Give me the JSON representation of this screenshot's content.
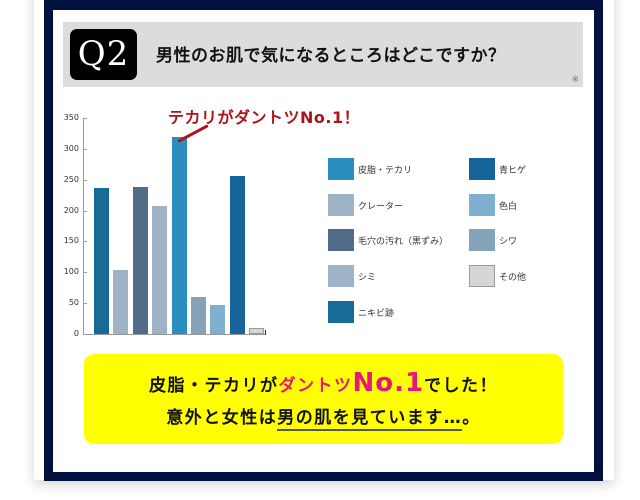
{
  "question": {
    "badge": "Q2",
    "text": "男性のお肌で気になるところはどこですか？",
    "note": "※"
  },
  "annotation": "テカリがダントツNo.1！",
  "callout": {
    "line1_a": "皮脂・テカリが",
    "line1_pink": "ダントツ",
    "line1_big": "No.1",
    "line1_b": "でした！",
    "line2_a": "意外と女性は",
    "line2_underline": "男の肌を見ています…",
    "line2_b": "。"
  },
  "colors": {
    "navy_frame": "#00103f",
    "header_gray": "#dcdcdc",
    "annotation_red": "#b0121b",
    "highlight_pink": "#e8157a",
    "callout_yellow": "#ffff00"
  },
  "chart_data": {
    "type": "bar",
    "title": "",
    "xlabel": "",
    "ylabel": "",
    "ylim": [
      0,
      350
    ],
    "yticks": [
      0,
      50,
      100,
      150,
      200,
      250,
      300,
      350
    ],
    "grid": false,
    "legend_position": "right",
    "categories": [
      "ニキビ跡",
      "シミ",
      "毛穴の汚れ（黒ずみ）",
      "クレーター",
      "皮脂・テカリ",
      "シワ",
      "色白",
      "青ヒゲ",
      "その他"
    ],
    "values": [
      237,
      103,
      239,
      208,
      319,
      60,
      47,
      256,
      9
    ],
    "colors": [
      "#166c96",
      "#9fb3c6",
      "#506c88",
      "#9fb3c6",
      "#2a8ebf",
      "#84a3b8",
      "#80afd0",
      "#16649a",
      "#d6d6d6"
    ],
    "legend": [
      {
        "label": "皮脂・テカリ",
        "color": "#2a8ebf"
      },
      {
        "label": "青ヒゲ",
        "color": "#16649a"
      },
      {
        "label": "クレーター",
        "color": "#9fb3c6"
      },
      {
        "label": "色白",
        "color": "#80afd0"
      },
      {
        "label": "毛穴の汚れ（黒ずみ）",
        "color": "#506c88"
      },
      {
        "label": "シワ",
        "color": "#84a3b8"
      },
      {
        "label": "シミ",
        "color": "#9fb3c6"
      },
      {
        "label": "その他",
        "color": "#d6d6d6"
      },
      {
        "label": "ニキビ跡",
        "color": "#166c96"
      }
    ],
    "annotation": "テカリがダントツNo.1！"
  }
}
